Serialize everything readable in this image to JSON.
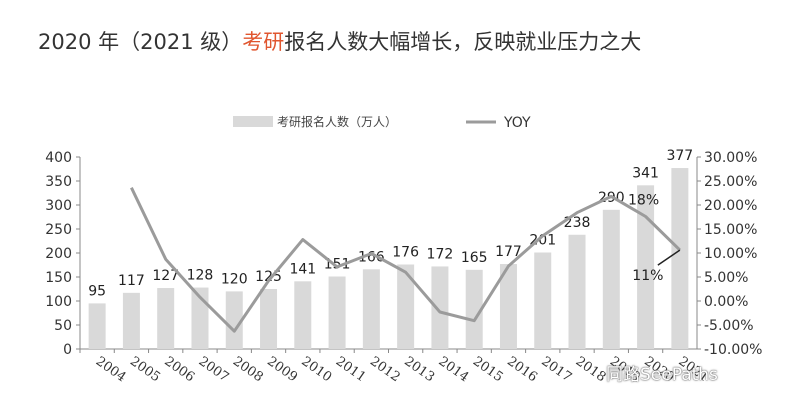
{
  "title": {
    "prefix": "2020 年（2021 级）",
    "highlight": "考研",
    "suffix": "报名人数大幅增长，反映就业压力之大",
    "highlight_color": "#e0562f"
  },
  "watermark": "同路SeePaths",
  "chart_data": {
    "type": "bar",
    "categories": [
      "2004",
      "2005",
      "2006",
      "2007",
      "2008",
      "2009",
      "2010",
      "2011",
      "2012",
      "2013",
      "2014",
      "2015",
      "2016",
      "2017",
      "2018",
      "2019",
      "2020",
      "2021"
    ],
    "series": [
      {
        "name": "考研报名人数（万人）",
        "type": "bar",
        "axis": "left",
        "color": "#d9d9d9",
        "values": [
          95,
          117,
          127,
          128,
          120,
          125,
          141,
          151,
          166,
          176,
          172,
          165,
          177,
          201,
          238,
          290,
          341,
          377
        ],
        "labels": [
          "95",
          "117",
          "127",
          "128",
          "120",
          "125",
          "141",
          "151",
          "166",
          "176",
          "172",
          "165",
          "177",
          "201",
          "238",
          "290",
          "341",
          "377"
        ]
      },
      {
        "name": "YOY",
        "type": "line",
        "axis": "right",
        "color": "#9b9b9b",
        "values": [
          null,
          23.6,
          8.7,
          0.8,
          -6.3,
          4.2,
          12.8,
          7.1,
          9.9,
          6.0,
          -2.3,
          -4.1,
          7.3,
          13.6,
          18.4,
          21.8,
          17.6,
          10.6
        ]
      }
    ],
    "annotations": [
      {
        "category": "2020",
        "text": "18%"
      },
      {
        "category": "2021",
        "text": "11%"
      }
    ],
    "ylim_left": [
      0,
      400
    ],
    "yticks_left": [
      "0",
      "50",
      "100",
      "150",
      "200",
      "250",
      "300",
      "350",
      "400"
    ],
    "ylim_right": [
      -10,
      30
    ],
    "yticks_right": [
      "-10.00%",
      "-5.00%",
      "0.00%",
      "5.00%",
      "10.00%",
      "15.00%",
      "20.00%",
      "25.00%",
      "30.00%"
    ],
    "legend_position": "top-center",
    "grid": false
  }
}
